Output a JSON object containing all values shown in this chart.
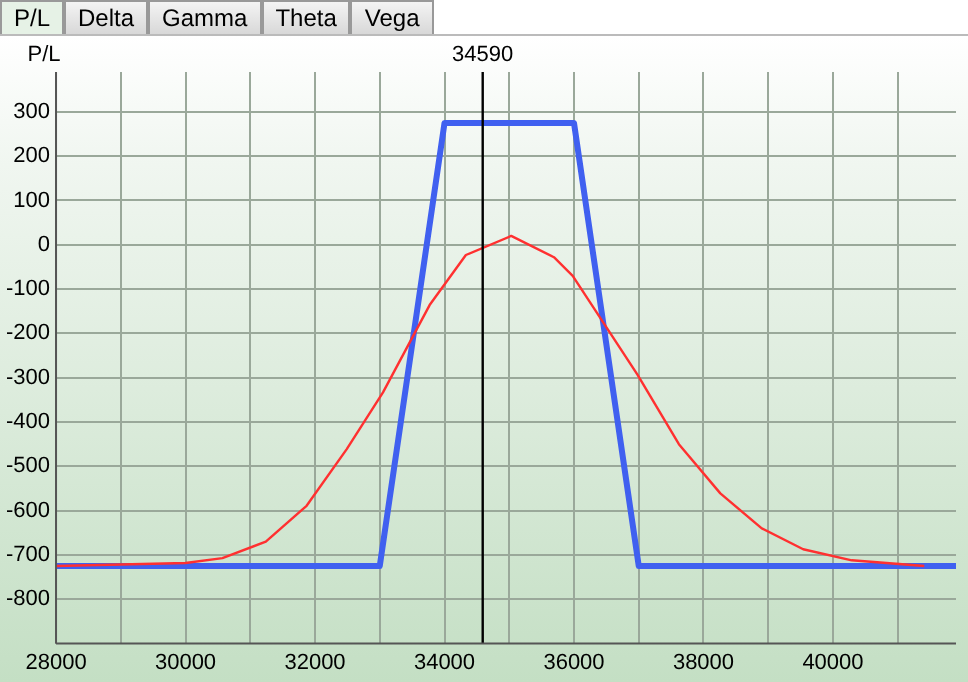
{
  "chart_data": {
    "type": "line",
    "ylabel": "P/L",
    "annotations": [
      "P/L",
      "Delta",
      "Gamma",
      "Theta",
      "Vega"
    ],
    "xlim": [
      28000,
      41900
    ],
    "ylim": [
      -900,
      390
    ],
    "xticks": [
      28000,
      {
        "value": 29000,
        "label": null
      },
      30000,
      {
        "value": 31000,
        "label": null
      },
      32000,
      {
        "value": 33000,
        "label": null
      },
      34000,
      {
        "value": 35000,
        "label": null
      },
      36000,
      {
        "value": 37000,
        "label": null
      },
      38000,
      {
        "value": 39000,
        "label": null
      },
      40000,
      {
        "value": 41000,
        "label": null
      }
    ],
    "yticks": [
      -800,
      -700,
      -600,
      -500,
      -400,
      -300,
      -200,
      -100,
      0,
      100,
      200,
      300
    ],
    "grid": true,
    "legend": false,
    "marker": "none",
    "line_style": "solid",
    "ref_lines": [
      {
        "axis": "x",
        "value": 34590,
        "label": "34590",
        "color": "#000000"
      }
    ],
    "series": [
      {
        "color": "#ff3030",
        "x": [
          28000,
          30000,
          30570,
          31240,
          31870,
          32490,
          33050,
          33770,
          34330,
          35030,
          35690,
          35980,
          36980,
          37620,
          38260,
          38900,
          39540,
          40290,
          41410
        ],
        "values": [
          -725,
          -718,
          -707,
          -670,
          -589,
          -461,
          -333,
          -136,
          -23,
          20,
          -28,
          -70,
          -293,
          -450,
          -561,
          -640,
          -687,
          -712,
          -725
        ]
      },
      {
        "color": "#4060f0",
        "x": [
          28000,
          33000,
          34000,
          36000,
          37000,
          41900
        ],
        "values": [
          -725,
          -725,
          275,
          275,
          -725,
          -725
        ]
      }
    ]
  }
}
